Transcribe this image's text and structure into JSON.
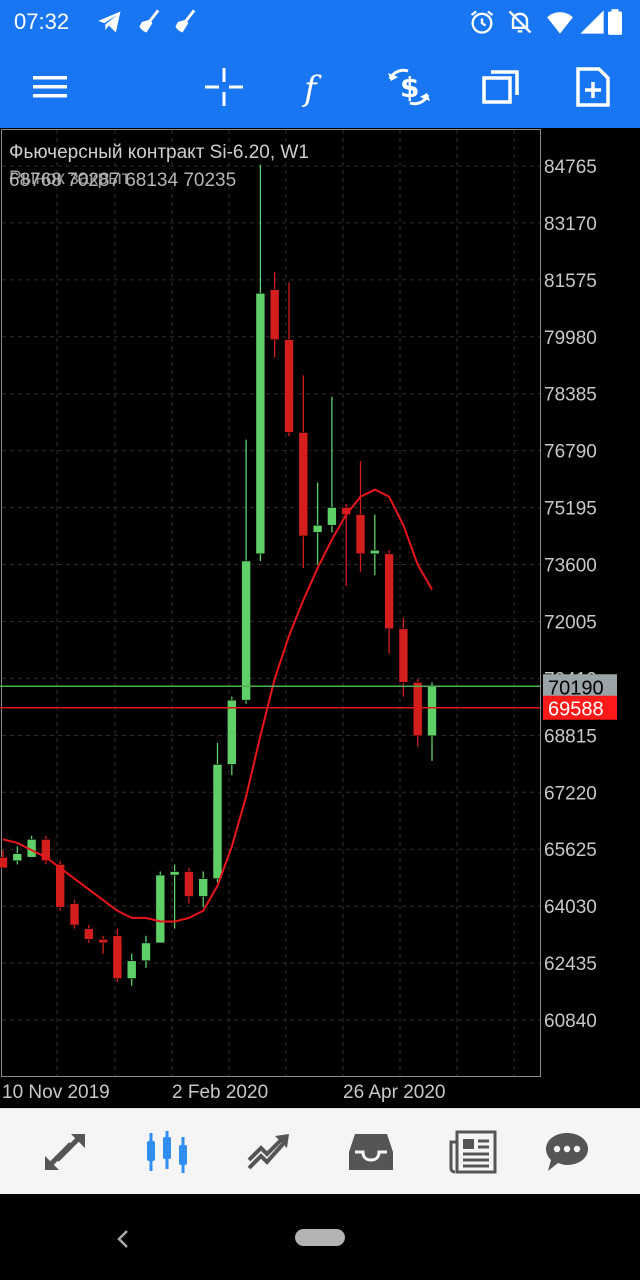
{
  "status_bar": {
    "time": "07:32",
    "icons": [
      "telegram-icon",
      "broom-icon",
      "broom-icon",
      "alarm-icon",
      "mute-icon",
      "wifi-icon",
      "signal-icon",
      "battery-icon"
    ]
  },
  "toolbar": {
    "buttons": [
      "menu-icon",
      "crosshair-icon",
      "function-icon",
      "trade-dollar-icon",
      "windows-icon",
      "new-document-icon"
    ]
  },
  "chart": {
    "symbol_title": "Фьючерсный контракт Si-6.20, W1",
    "market_label": "Рынок закрыт",
    "ohlc": "68768 70287 68134 70235",
    "price_levels": [
      "84765",
      "83170",
      "81575",
      "79980",
      "78385",
      "76790",
      "75195",
      "73600",
      "72005",
      "70410",
      "68815",
      "67220",
      "65625",
      "64030",
      "62435",
      "60840"
    ],
    "time_labels": [
      "10 Nov 2019",
      "2 Feb 2020",
      "26 Apr 2020"
    ],
    "bid_line": {
      "label": "70190",
      "value": 70190,
      "color": "#7fbf7f"
    },
    "ask_line": {
      "label": "69588",
      "value": 69588,
      "color": "#ff2020"
    },
    "colors": {
      "bull": "#5fd068",
      "bear": "#d41d1d",
      "ma": "#e8161c",
      "grid": "#2e2e2e"
    },
    "candles": [
      {
        "o": 65400,
        "h": 65600,
        "l": 65100,
        "c": 65100
      },
      {
        "o": 65300,
        "h": 65700,
        "l": 65200,
        "c": 65500
      },
      {
        "o": 65400,
        "h": 66000,
        "l": 65400,
        "c": 65900
      },
      {
        "o": 65900,
        "h": 66000,
        "l": 65200,
        "c": 65300
      },
      {
        "o": 65200,
        "h": 65300,
        "l": 63900,
        "c": 64000
      },
      {
        "o": 64100,
        "h": 64200,
        "l": 63400,
        "c": 63500
      },
      {
        "o": 63400,
        "h": 63500,
        "l": 63000,
        "c": 63100
      },
      {
        "o": 63100,
        "h": 63200,
        "l": 62700,
        "c": 63000
      },
      {
        "o": 63200,
        "h": 63400,
        "l": 61900,
        "c": 62000
      },
      {
        "o": 62000,
        "h": 62700,
        "l": 61800,
        "c": 62500
      },
      {
        "o": 62500,
        "h": 63200,
        "l": 62300,
        "c": 63000
      },
      {
        "o": 63000,
        "h": 65000,
        "l": 63000,
        "c": 64900
      },
      {
        "o": 64900,
        "h": 65200,
        "l": 63400,
        "c": 65000
      },
      {
        "o": 65000,
        "h": 65100,
        "l": 64100,
        "c": 64300
      },
      {
        "o": 64300,
        "h": 65000,
        "l": 64000,
        "c": 64800
      },
      {
        "o": 64800,
        "h": 68600,
        "l": 64700,
        "c": 68000
      },
      {
        "o": 68000,
        "h": 69900,
        "l": 67700,
        "c": 69800
      },
      {
        "o": 69800,
        "h": 77100,
        "l": 69700,
        "c": 73700
      },
      {
        "o": 73900,
        "h": 84800,
        "l": 73700,
        "c": 81200
      },
      {
        "o": 81300,
        "h": 81800,
        "l": 79400,
        "c": 79900
      },
      {
        "o": 79900,
        "h": 81500,
        "l": 77200,
        "c": 77300
      },
      {
        "o": 77300,
        "h": 78900,
        "l": 73500,
        "c": 74400
      },
      {
        "o": 74500,
        "h": 75900,
        "l": 73600,
        "c": 74700
      },
      {
        "o": 74700,
        "h": 78300,
        "l": 74500,
        "c": 75200
      },
      {
        "o": 75200,
        "h": 75300,
        "l": 73000,
        "c": 75000
      },
      {
        "o": 75000,
        "h": 76500,
        "l": 73400,
        "c": 73900
      },
      {
        "o": 73900,
        "h": 75000,
        "l": 73300,
        "c": 74000
      },
      {
        "o": 73900,
        "h": 74000,
        "l": 71100,
        "c": 71800
      },
      {
        "o": 71800,
        "h": 72100,
        "l": 69900,
        "c": 70300
      },
      {
        "o": 70300,
        "h": 70400,
        "l": 68500,
        "c": 68800
      },
      {
        "o": 68800,
        "h": 70300,
        "l": 68100,
        "c": 70200
      }
    ],
    "moving_average": [
      65900,
      65800,
      65600,
      65400,
      65100,
      64800,
      64500,
      64200,
      63900,
      63700,
      63700,
      63600,
      63600,
      63700,
      63900,
      64600,
      65700,
      67100,
      68800,
      70400,
      71600,
      72600,
      73500,
      74300,
      75000,
      75500,
      75700,
      75500,
      74700,
      73600,
      72900
    ]
  },
  "bottom_nav": {
    "items": [
      "quotes-icon",
      "chart-icon",
      "trade-icon",
      "history-icon",
      "news-icon",
      "chat-icon"
    ],
    "active": 1
  }
}
